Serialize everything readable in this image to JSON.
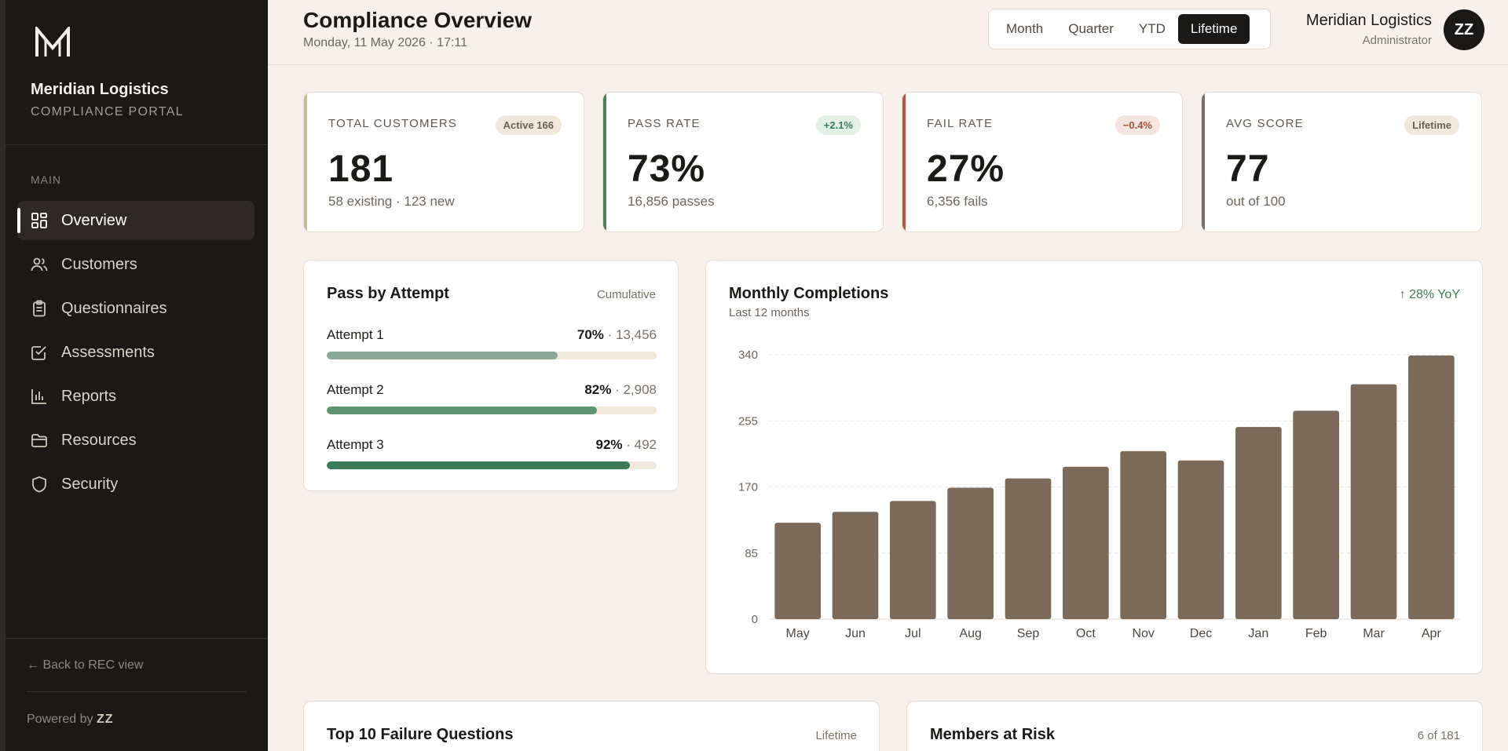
{
  "brand": {
    "name": "Meridian Logistics",
    "subtitle": "COMPLIANCE PORTAL"
  },
  "nav": {
    "section": "MAIN",
    "items": [
      {
        "label": "Overview",
        "icon": "grid-icon",
        "active": true
      },
      {
        "label": "Customers",
        "icon": "users-icon"
      },
      {
        "label": "Questionnaires",
        "icon": "clipboard-icon"
      },
      {
        "label": "Assessments",
        "icon": "check-square-icon"
      },
      {
        "label": "Reports",
        "icon": "bar-chart-icon"
      },
      {
        "label": "Resources",
        "icon": "folder-icon"
      },
      {
        "label": "Security",
        "icon": "shield-icon"
      }
    ]
  },
  "footer": {
    "back_label": "← Back to REC view",
    "powered_prefix": "Powered by",
    "powered_brand": "ZZ"
  },
  "header": {
    "title": "Compliance Overview",
    "date": "Monday, 11 May 2026 · 17:11",
    "periods": [
      "Month",
      "Quarter",
      "YTD",
      "Lifetime"
    ],
    "active_period": "Lifetime",
    "user_name": "Meridian Logistics",
    "user_role": "Administrator",
    "avatar_initials": "ZZ"
  },
  "stats": [
    {
      "label": "TOTAL CUSTOMERS",
      "badge": "Active 166",
      "value": "181",
      "sub": "58 existing · 123 new",
      "accent": "#c9b99f",
      "badge_bg": "#f1e8dc",
      "badge_fg": "#6b5f50"
    },
    {
      "label": "PASS RATE",
      "badge": "+2.1%",
      "value": "73%",
      "sub": "16,856 passes",
      "accent": "#4f7d5e",
      "badge_bg": "#e2f0e5",
      "badge_fg": "#3a7a55"
    },
    {
      "label": "FAIL RATE",
      "badge": "−0.4%",
      "value": "27%",
      "sub": "6,356 fails",
      "accent": "#b0564a",
      "badge_bg": "#f6e4df",
      "badge_fg": "#a6503f"
    },
    {
      "label": "AVG SCORE",
      "badge": "Lifetime",
      "value": "77",
      "sub": "out of 100",
      "accent": "#7a7166",
      "badge_bg": "#f1e8dc",
      "badge_fg": "#6b5f50"
    }
  ],
  "attempts": {
    "title": "Pass by Attempt",
    "meta": "Cumulative",
    "items": [
      {
        "label": "Attempt 1",
        "pct": "70%",
        "count": "13,456",
        "value": 0.7,
        "color": "#8ba896"
      },
      {
        "label": "Attempt 2",
        "pct": "82%",
        "count": "2,908",
        "value": 0.82,
        "color": "#5f9472"
      },
      {
        "label": "Attempt 3",
        "pct": "92%",
        "count": "492",
        "value": 0.92,
        "color": "#3c7b57"
      }
    ]
  },
  "monthly": {
    "title": "Monthly Completions",
    "subtitle": "Last 12 months",
    "yoy": "↑ 28% YoY"
  },
  "bottom": {
    "left_title": "Top 10 Failure Questions",
    "left_meta": "Lifetime",
    "right_title": "Members at Risk",
    "right_meta": "6 of 181"
  },
  "chart_data": {
    "type": "bar",
    "categories": [
      "May",
      "Jun",
      "Jul",
      "Aug",
      "Sep",
      "Oct",
      "Nov",
      "Dec",
      "Jan",
      "Feb",
      "Mar",
      "Apr"
    ],
    "values": [
      124,
      138,
      152,
      169,
      181,
      196,
      216,
      204,
      247,
      268,
      302,
      339
    ],
    "title": "Monthly Completions",
    "subtitle": "Last 12 months",
    "xlabel": "",
    "ylabel": "",
    "ylim": [
      0,
      340
    ],
    "yticks": [
      0,
      85,
      170,
      255,
      340
    ],
    "grid": true,
    "bar_color": "#7b6a5a"
  }
}
